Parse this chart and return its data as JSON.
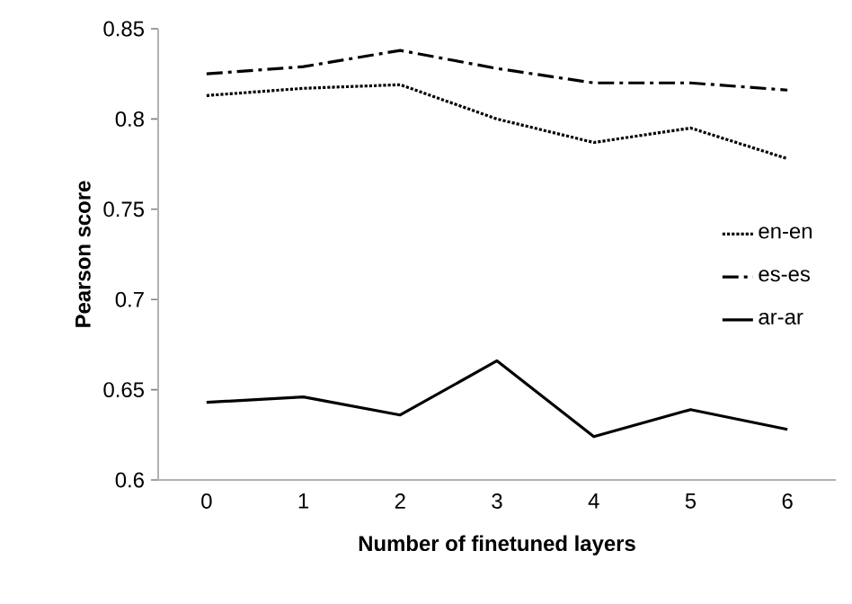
{
  "chart_data": {
    "type": "line",
    "xlabel": "Number of finetuned layers",
    "ylabel": "Pearson score",
    "categories": [
      "0",
      "1",
      "2",
      "3",
      "4",
      "5",
      "6"
    ],
    "series": [
      {
        "name": "en-en",
        "color": "#000000",
        "line_style": "dotted",
        "values": [
          0.813,
          0.817,
          0.819,
          0.8,
          0.787,
          0.795,
          0.778
        ]
      },
      {
        "name": "es-es",
        "color": "#000000",
        "line_style": "dashdot",
        "values": [
          0.825,
          0.829,
          0.838,
          0.828,
          0.82,
          0.82,
          0.816
        ]
      },
      {
        "name": "ar-ar",
        "color": "#000000",
        "line_style": "solid",
        "values": [
          0.643,
          0.646,
          0.636,
          0.666,
          0.624,
          0.639,
          0.628
        ]
      }
    ],
    "ylim": [
      0.6,
      0.85
    ],
    "yticks": [
      0.6,
      0.65,
      0.7,
      0.75,
      0.8,
      0.85
    ],
    "grid": false,
    "legend": "right"
  }
}
